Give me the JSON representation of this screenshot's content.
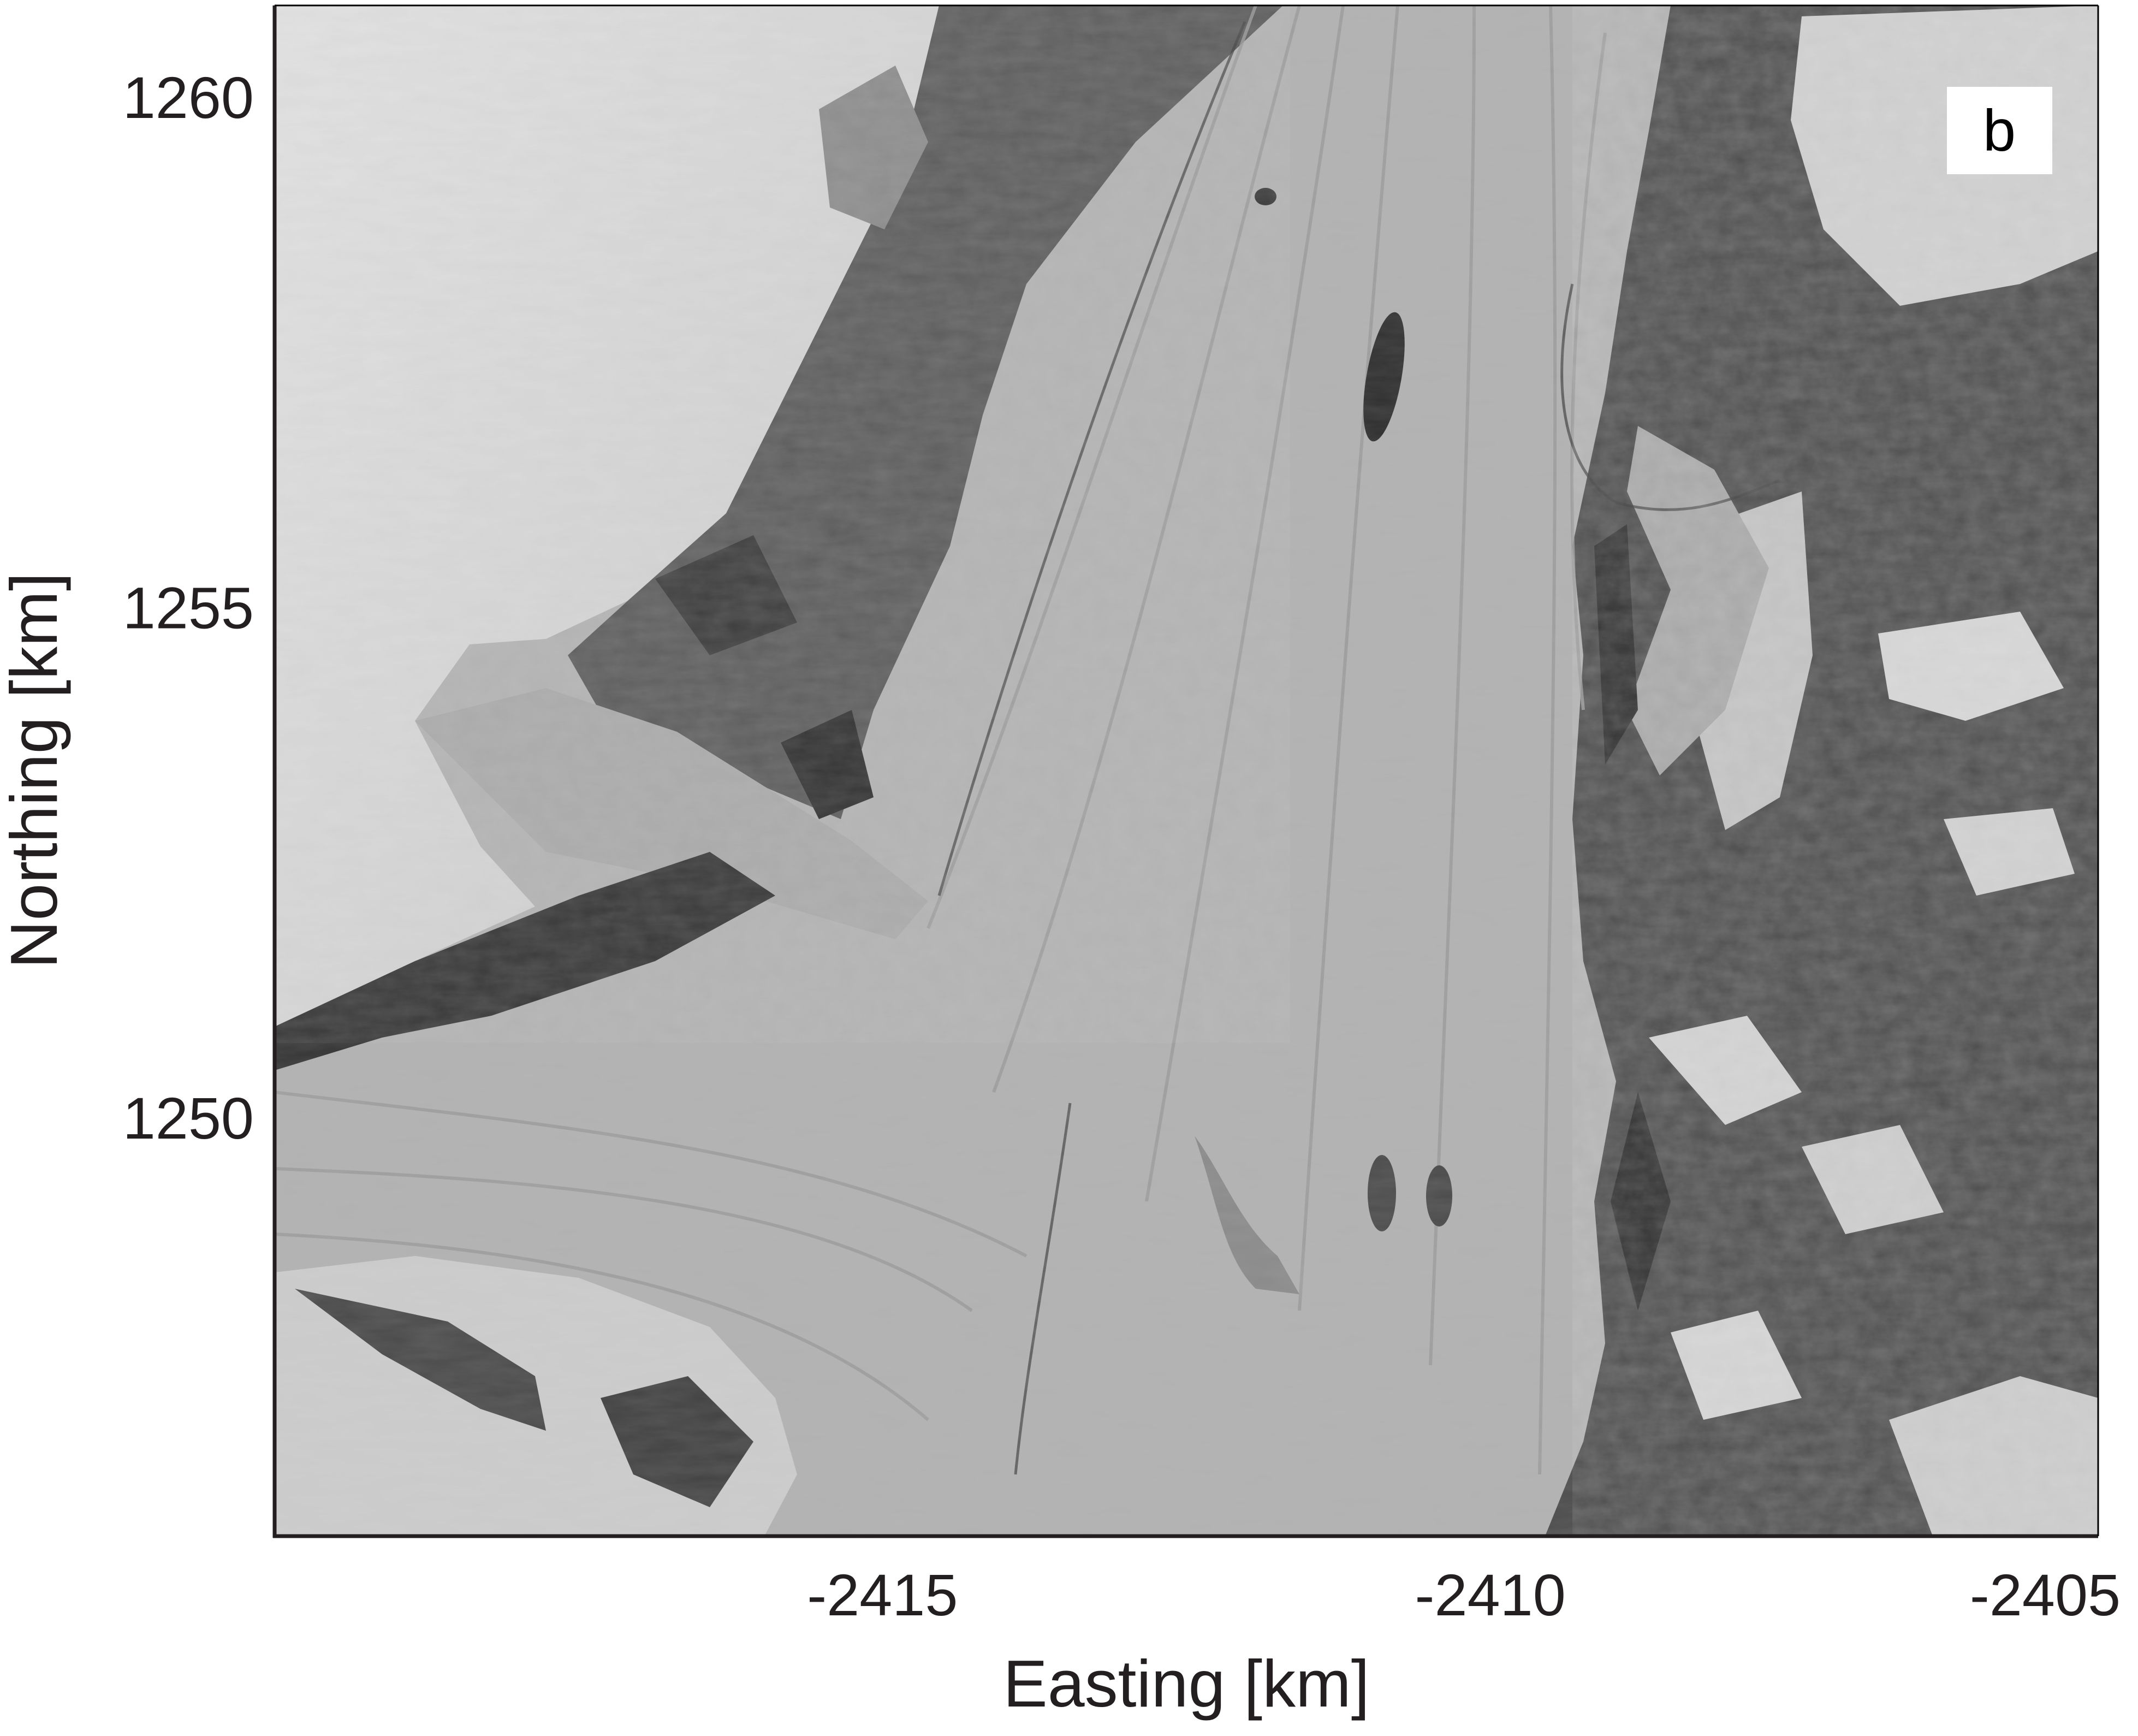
{
  "panel_label": "b",
  "x_axis": {
    "label": "Easting [km]",
    "ticks": [
      "-2415",
      "-2410",
      "-2405"
    ],
    "tick_values": [
      -2415,
      -2410,
      -2405
    ],
    "range": [
      -2420,
      -2405
    ]
  },
  "y_axis": {
    "label": "Northing [km]",
    "ticks": [
      "1260",
      "1255",
      "1250"
    ],
    "tick_values": [
      1260,
      1255,
      1250
    ],
    "range": [
      1245.9,
      1260.9
    ]
  },
  "map": {
    "type": "grayscale satellite image",
    "grid": false,
    "panel_label_position": "top-right"
  },
  "colors": {
    "axis": "#231f20",
    "ice": "#b4b4b4",
    "rock": "#3c3c3c",
    "snow": "#d8d8d8"
  }
}
